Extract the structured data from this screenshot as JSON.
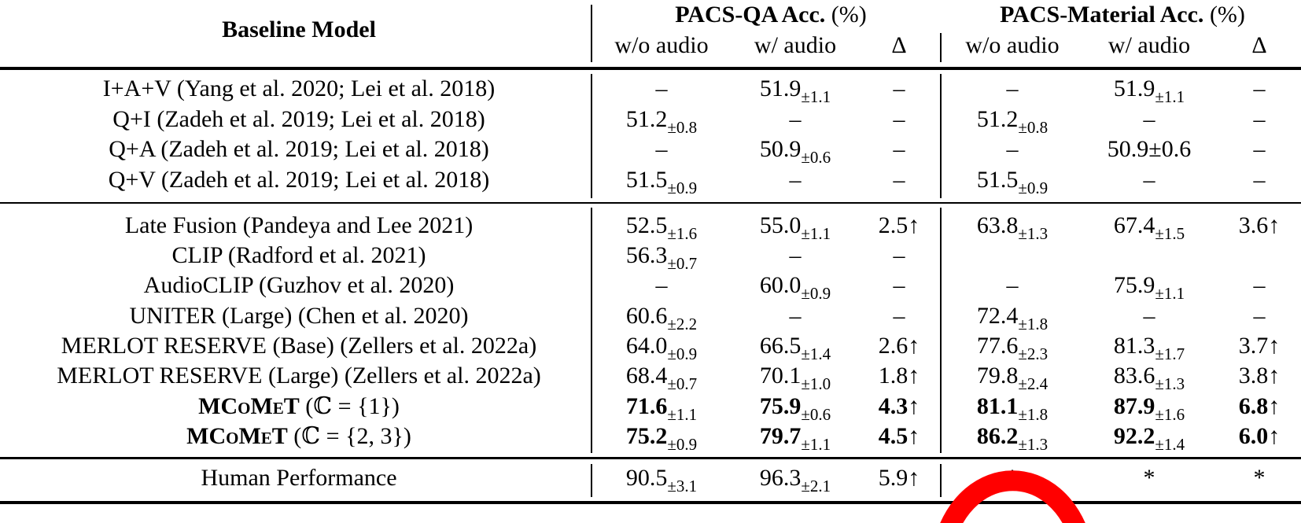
{
  "header": {
    "model_col": "Baseline Model",
    "group1": {
      "bold": "PACS-QA Acc.",
      "unit": "(%)"
    },
    "group2": {
      "bold": "PACS-Material Acc.",
      "unit": "(%)"
    },
    "sub": [
      "w/o audio",
      "w/ audio",
      "Δ",
      "w/o audio",
      "w/ audio",
      "Δ"
    ]
  },
  "rows": [
    {
      "model": "I+A+V (Yang et al. 2020; Lei et al. 2018)",
      "bold": false,
      "cells": [
        {
          "v": "–"
        },
        {
          "v": "51.9",
          "sd": "±1.1"
        },
        {
          "v": "–"
        },
        {
          "v": "–"
        },
        {
          "v": "51.9",
          "sd": "±1.1"
        },
        {
          "v": "–"
        }
      ]
    },
    {
      "model": "Q+I (Zadeh et al. 2019; Lei et al. 2018)",
      "bold": false,
      "cells": [
        {
          "v": "51.2",
          "sd": "±0.8"
        },
        {
          "v": "–"
        },
        {
          "v": "–"
        },
        {
          "v": "51.2",
          "sd": "±0.8"
        },
        {
          "v": "–"
        },
        {
          "v": "–"
        }
      ]
    },
    {
      "model": "Q+A (Zadeh et al. 2019; Lei et al. 2018)",
      "bold": false,
      "cells": [
        {
          "v": "–"
        },
        {
          "v": "50.9",
          "sd": "±0.6"
        },
        {
          "v": "–"
        },
        {
          "v": "–"
        },
        {
          "v": "50.9±0.6"
        },
        {
          "v": "–"
        }
      ]
    },
    {
      "model": "Q+V (Zadeh et al. 2019; Lei et al. 2018)",
      "bold": false,
      "cells": [
        {
          "v": "51.5",
          "sd": "±0.9"
        },
        {
          "v": "–"
        },
        {
          "v": "–"
        },
        {
          "v": "51.5",
          "sd": "±0.9"
        },
        {
          "v": "–"
        },
        {
          "v": "–"
        }
      ]
    },
    {
      "model": "Late Fusion (Pandeya and Lee 2021)",
      "bold": false,
      "cells": [
        {
          "v": "52.5",
          "sd": "±1.6"
        },
        {
          "v": "55.0",
          "sd": "±1.1"
        },
        {
          "v": "2.5↑"
        },
        {
          "v": "63.8",
          "sd": "±1.3"
        },
        {
          "v": "67.4",
          "sd": "±1.5"
        },
        {
          "v": "3.6↑"
        }
      ]
    },
    {
      "model": "CLIP (Radford et al. 2021)",
      "bold": false,
      "cells": [
        {
          "v": "56.3",
          "sd": "±0.7"
        },
        {
          "v": "–"
        },
        {
          "v": "–"
        },
        {
          "v": ""
        },
        {
          "v": ""
        },
        {
          "v": ""
        }
      ]
    },
    {
      "model": "AudioCLIP (Guzhov et al. 2020)",
      "bold": false,
      "cells": [
        {
          "v": "–"
        },
        {
          "v": "60.0",
          "sd": "±0.9"
        },
        {
          "v": "–"
        },
        {
          "v": "–"
        },
        {
          "v": "75.9",
          "sd": "±1.1"
        },
        {
          "v": "–"
        }
      ]
    },
    {
      "model": "UNITER (Large) (Chen et al. 2020)",
      "bold": false,
      "cells": [
        {
          "v": "60.6",
          "sd": "±2.2"
        },
        {
          "v": "–"
        },
        {
          "v": "–"
        },
        {
          "v": "72.4",
          "sd": "±1.8"
        },
        {
          "v": "–"
        },
        {
          "v": "–"
        }
      ]
    },
    {
      "model": "MERLOT RESERVE (Base) (Zellers et al. 2022a)",
      "bold": false,
      "cells": [
        {
          "v": "64.0",
          "sd": "±0.9"
        },
        {
          "v": "66.5",
          "sd": "±1.4"
        },
        {
          "v": "2.6↑"
        },
        {
          "v": "77.6",
          "sd": "±2.3"
        },
        {
          "v": "81.3",
          "sd": "±1.7"
        },
        {
          "v": "3.7↑"
        }
      ]
    },
    {
      "model": "MERLOT RESERVE (Large) (Zellers et al. 2022a)",
      "bold": false,
      "cells": [
        {
          "v": "68.4",
          "sd": "±0.7"
        },
        {
          "v": "70.1",
          "sd": "±1.0"
        },
        {
          "v": "1.8↑"
        },
        {
          "v": "79.8",
          "sd": "±2.4"
        },
        {
          "v": "83.6",
          "sd": "±1.3"
        },
        {
          "v": "3.8↑"
        }
      ]
    },
    {
      "model": "MCoMeT",
      "model_suffix": "(ℂ = {1})",
      "bold": true,
      "cells": [
        {
          "v": "71.6",
          "sd": "±1.1"
        },
        {
          "v": "75.9",
          "sd": "±0.6"
        },
        {
          "v": "4.3↑"
        },
        {
          "v": "81.1",
          "sd": "±1.8"
        },
        {
          "v": "87.9",
          "sd": "±1.6"
        },
        {
          "v": "6.8↑"
        }
      ]
    },
    {
      "model": "MCoMeT",
      "model_suffix": "(ℂ = {2, 3})",
      "bold": true,
      "cells": [
        {
          "v": "75.2",
          "sd": "±0.9"
        },
        {
          "v": "79.7",
          "sd": "±1.1"
        },
        {
          "v": "4.5↑"
        },
        {
          "v": "86.2",
          "sd": "±1.3"
        },
        {
          "v": "92.2",
          "sd": "±1.4"
        },
        {
          "v": "6.0↑"
        }
      ]
    },
    {
      "model": "Human Performance",
      "bold": false,
      "cells": [
        {
          "v": "90.5",
          "sd": "±3.1"
        },
        {
          "v": "96.3",
          "sd": "±2.1"
        },
        {
          "v": "5.9↑"
        },
        {
          "v": "*"
        },
        {
          "v": "*"
        },
        {
          "v": "*"
        }
      ]
    }
  ],
  "colors": {
    "annotation_mark": "#ff0000"
  }
}
